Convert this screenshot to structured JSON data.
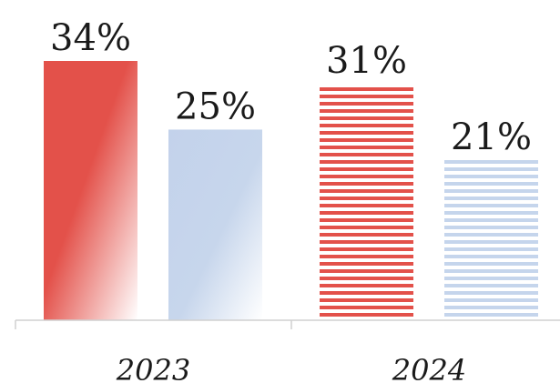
{
  "chart_data": {
    "type": "bar",
    "categories": [
      "2023",
      "2024"
    ],
    "series": [
      {
        "values": [
          34,
          31
        ],
        "color": "#e3514a"
      },
      {
        "values": [
          25,
          21
        ],
        "color": "#c5d5ec"
      }
    ],
    "data_labels": [
      [
        "34%",
        "31%"
      ],
      [
        "25%",
        "21%"
      ]
    ],
    "fill_style": [
      "gradient",
      "horizontal-stripes"
    ],
    "ylim": [
      0,
      34
    ],
    "grid": false,
    "legend": "none"
  }
}
